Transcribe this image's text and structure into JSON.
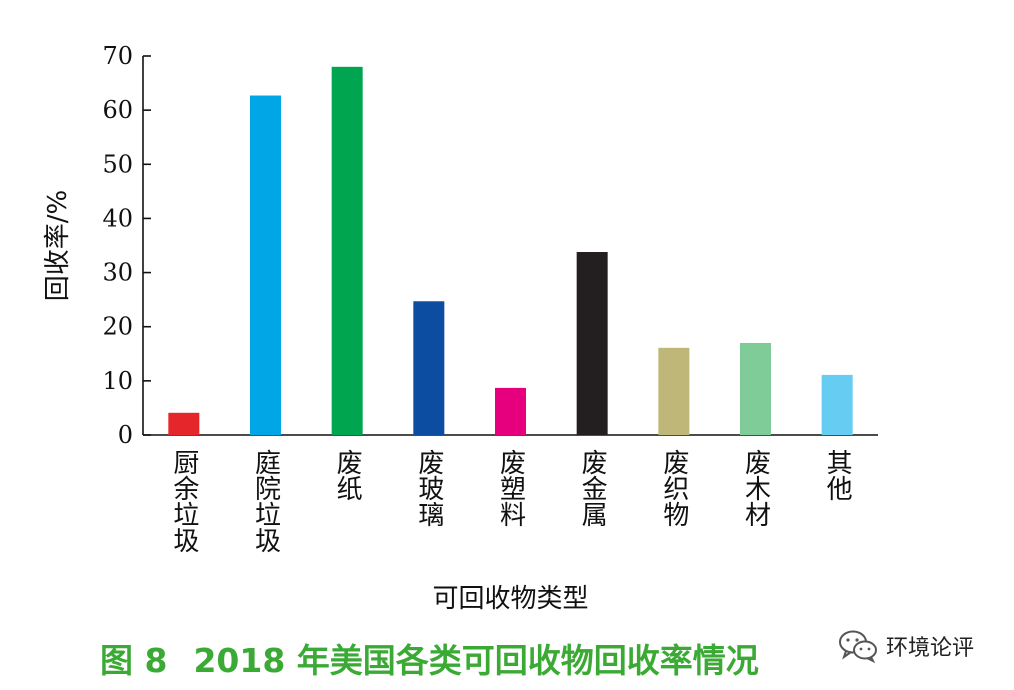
{
  "chart_data": {
    "type": "bar",
    "xlabel": "可回收物类型",
    "ylabel": "回收率/%",
    "ylim": [
      0,
      70
    ],
    "yticks": [
      0,
      10,
      20,
      30,
      40,
      50,
      60,
      70
    ],
    "grid": false,
    "categories": [
      "厨余垃圾",
      "庭院垃圾",
      "废纸",
      "废玻璃",
      "废塑料",
      "废金属",
      "废织物",
      "废木材",
      "其他"
    ],
    "values": [
      4.1,
      62.7,
      68.0,
      24.7,
      8.7,
      33.8,
      16.1,
      17.0,
      11.1
    ],
    "colors": [
      "#e5262a",
      "#00a6e6",
      "#00a54f",
      "#0c4da2",
      "#e6007e",
      "#231f20",
      "#bfb777",
      "#7fcc99",
      "#66ccf2"
    ]
  },
  "caption": {
    "figure_number": "图 8",
    "text": "2018 年美国各类可回收物回收率情况"
  },
  "watermark": {
    "text": "环境论评",
    "icon": "wechat-icon"
  }
}
